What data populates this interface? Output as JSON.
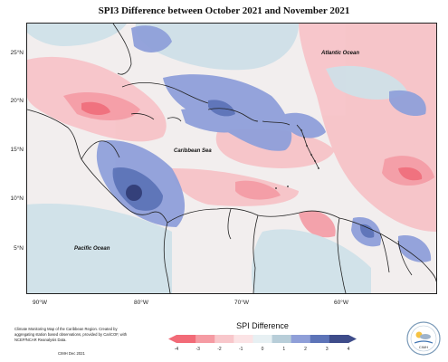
{
  "title": "SPI3 Difference between October 2021 and November 2021",
  "map": {
    "ocean_labels": {
      "atlantic": "Atlantic Ocean",
      "caribbean": "Caribbean Sea",
      "pacific": "Pacific Ocean"
    },
    "lat_labels": [
      "25°N",
      "20°N",
      "15°N",
      "10°N",
      "5°N"
    ],
    "lon_labels": [
      "90°W",
      "80°W",
      "70°W",
      "60°W"
    ]
  },
  "legend": {
    "title": "SPI Difference",
    "ticks": [
      "-4",
      "-3",
      "-2",
      "-1",
      "0",
      "1",
      "2",
      "3",
      "4"
    ],
    "colors": [
      "#f26b78",
      "#f59ba3",
      "#f8c7cb",
      "#fbe3e5",
      "#e7f0f3",
      "#b8ced9",
      "#8f9fd8",
      "#5d74b8",
      "#3e4c8a"
    ]
  },
  "credits": {
    "text": "Climate Monitoring Map of the Caribbean Region. Created by aggregating station based observations, provided by CariCOF, with NCEP/NCAR Reanalysis Data.",
    "date": "CIMH Dec 2021"
  },
  "logo": {
    "icon": "cimh-logo-icon",
    "label": "CIMH"
  }
}
